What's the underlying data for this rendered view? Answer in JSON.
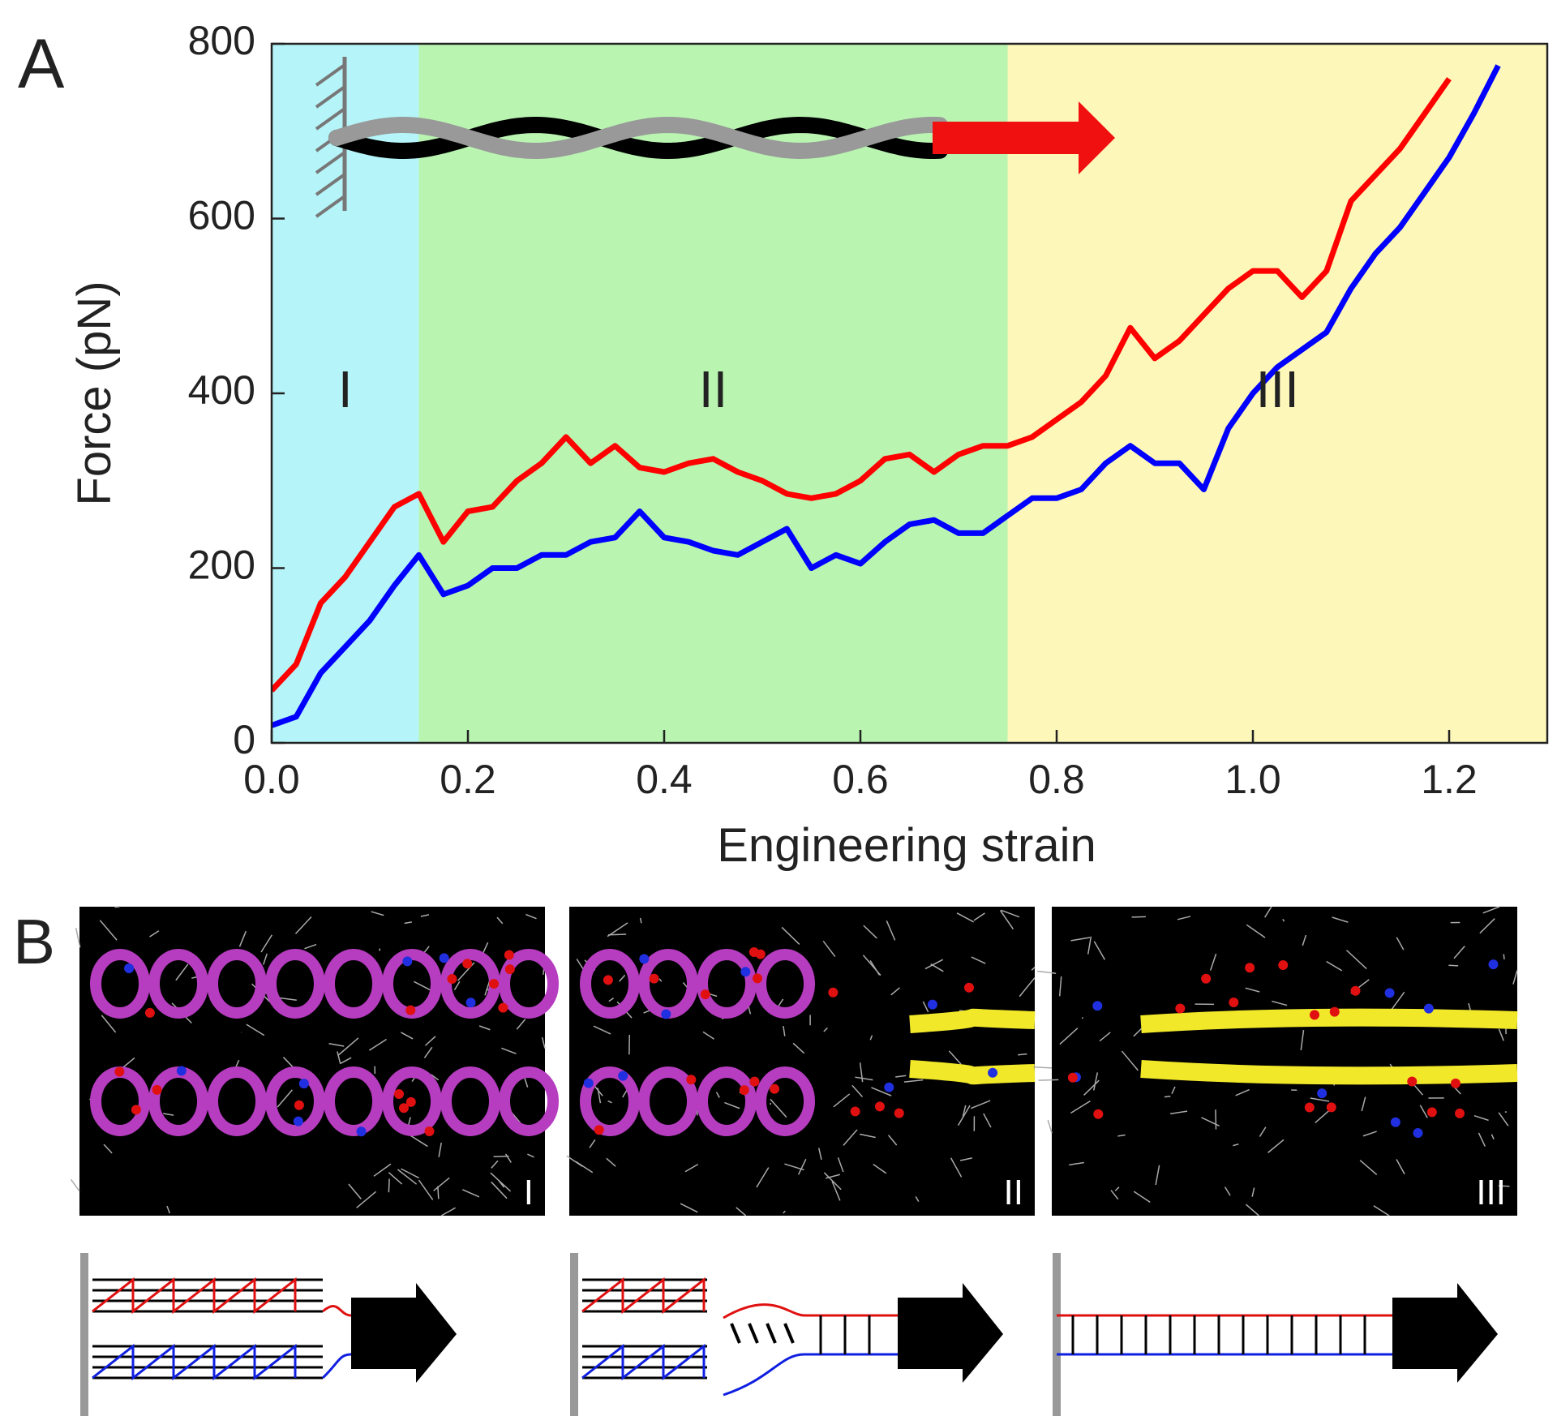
{
  "chart_data": {
    "type": "line",
    "panel_label": "A",
    "x_label": "Engineering strain",
    "y_label": "Force (pN)",
    "x": [
      0,
      0.025,
      0.05,
      0.075,
      0.1,
      0.125,
      0.15,
      0.175,
      0.2,
      0.225,
      0.25,
      0.275,
      0.3,
      0.325,
      0.35,
      0.375,
      0.4,
      0.425,
      0.45,
      0.475,
      0.5,
      0.525,
      0.55,
      0.575,
      0.6,
      0.625,
      0.65,
      0.675,
      0.7,
      0.725,
      0.75,
      0.775,
      0.8,
      0.825,
      0.85,
      0.875,
      0.9,
      0.925,
      0.95,
      0.975,
      1.0,
      1.025,
      1.05,
      1.075,
      1.1,
      1.125,
      1.15,
      1.175,
      1.2,
      1.225,
      1.25
    ],
    "series": [
      {
        "color": "#ff0000",
        "values": [
          60,
          90,
          160,
          190,
          230,
          270,
          285,
          230,
          265,
          270,
          300,
          320,
          350,
          320,
          340,
          315,
          310,
          320,
          325,
          310,
          300,
          285,
          280,
          285,
          300,
          325,
          330,
          310,
          330,
          340,
          340,
          350,
          370,
          390,
          420,
          475,
          440,
          460,
          490,
          520,
          540,
          540,
          510,
          540,
          620,
          650,
          680,
          720,
          760,
          null,
          null
        ]
      },
      {
        "color": "#0000ff",
        "values": [
          20,
          30,
          80,
          110,
          140,
          180,
          215,
          170,
          180,
          200,
          200,
          215,
          215,
          230,
          235,
          265,
          235,
          230,
          220,
          215,
          230,
          245,
          200,
          215,
          205,
          230,
          250,
          255,
          240,
          240,
          260,
          280,
          280,
          290,
          320,
          340,
          320,
          320,
          290,
          360,
          400,
          430,
          450,
          470,
          520,
          560,
          590,
          630,
          670,
          720,
          775
        ]
      }
    ],
    "xlim": [
      0,
      1.3
    ],
    "ylim": [
      0,
      800
    ],
    "xticks": [
      {
        "value": 0,
        "label": "0.0"
      },
      0.2,
      0.4,
      0.6,
      0.8,
      {
        "value": 1,
        "label": "1.0"
      },
      1.2
    ],
    "yticks": [
      0,
      200,
      400,
      600,
      800
    ],
    "regions": [
      {
        "label": "I",
        "start": 0,
        "end": 0.15,
        "color": "#b5f4f8"
      },
      {
        "label": "II",
        "start": 0.15,
        "end": 0.75,
        "color": "#b9f5b1"
      },
      {
        "label": "III",
        "start": 0.75,
        "end": 1.3,
        "color": "#fdf8b9"
      }
    ]
  },
  "panel_b": {
    "label": "B",
    "panels": [
      "I",
      "II",
      "III"
    ]
  }
}
